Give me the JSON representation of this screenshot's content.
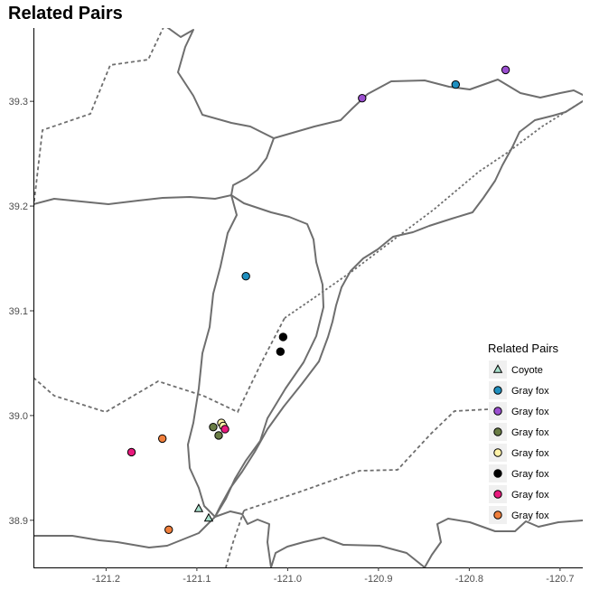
{
  "title": "Related Pairs",
  "chart_data": {
    "type": "scatter",
    "title": "Related Pairs",
    "xlabel": "",
    "ylabel": "",
    "xlim": [
      -121.28,
      -120.675
    ],
    "ylim": [
      38.855,
      39.37
    ],
    "x_ticks": [
      {
        "value": -121.2,
        "label": "-121.2"
      },
      {
        "value": -121.1,
        "label": "-121.1"
      },
      {
        "value": -121.0,
        "label": "-121.0"
      },
      {
        "value": -120.9,
        "label": "-120.9"
      },
      {
        "value": -120.8,
        "label": "-120.8"
      },
      {
        "value": -120.7,
        "label": "-120.7"
      }
    ],
    "y_ticks": [
      {
        "value": 38.9,
        "label": "38.9"
      },
      {
        "value": 39.0,
        "label": "39.0"
      },
      {
        "value": 39.1,
        "label": "39.1"
      },
      {
        "value": 39.2,
        "label": "39.2"
      },
      {
        "value": 39.3,
        "label": "39.3"
      }
    ],
    "grid": false,
    "legend": {
      "title": "Related Pairs",
      "placement": "right",
      "entries": [
        {
          "label": "Coyote",
          "shape": "triangle",
          "color": "#a8e0cc"
        },
        {
          "label": "Gray fox",
          "shape": "circle",
          "color": "#1f8fbf"
        },
        {
          "label": "Gray fox",
          "shape": "circle",
          "color": "#9b4fd0"
        },
        {
          "label": "Gray fox",
          "shape": "circle",
          "color": "#6a7d45"
        },
        {
          "label": "Gray fox",
          "shape": "circle",
          "color": "#fff2a8"
        },
        {
          "label": "Gray fox",
          "shape": "circle",
          "color": "#000000"
        },
        {
          "label": "Gray fox",
          "shape": "circle",
          "color": "#e8197d"
        },
        {
          "label": "Gray fox",
          "shape": "circle",
          "color": "#f07f3c"
        }
      ]
    },
    "series": [
      {
        "group": 0,
        "points": [
          [
            -121.098,
            38.911
          ],
          [
            -121.087,
            38.902
          ]
        ]
      },
      {
        "group": 1,
        "points": [
          [
            -120.815,
            39.316
          ],
          [
            -121.046,
            39.133
          ]
        ]
      },
      {
        "group": 2,
        "points": [
          [
            -120.76,
            39.33
          ],
          [
            -120.918,
            39.303
          ]
        ]
      },
      {
        "group": 3,
        "points": [
          [
            -121.082,
            38.989
          ],
          [
            -121.076,
            38.981
          ]
        ]
      },
      {
        "group": 4,
        "points": [
          [
            -121.073,
            38.993
          ],
          [
            -121.071,
            38.99
          ]
        ]
      },
      {
        "group": 5,
        "points": [
          [
            -121.005,
            39.075
          ],
          [
            -121.008,
            39.061
          ]
        ]
      },
      {
        "group": 6,
        "points": [
          [
            -121.172,
            38.965
          ],
          [
            -121.069,
            38.987
          ]
        ]
      },
      {
        "group": 7,
        "points": [
          [
            -121.138,
            38.978
          ],
          [
            -121.131,
            38.891
          ]
        ]
      }
    ]
  }
}
